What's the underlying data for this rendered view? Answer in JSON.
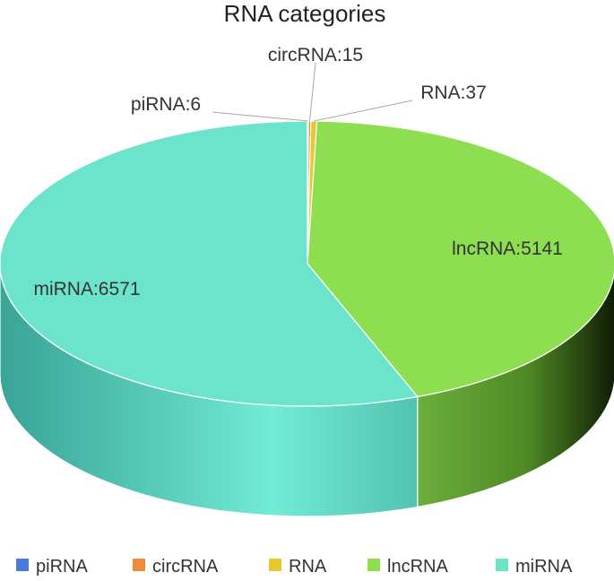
{
  "chart_data": {
    "type": "pie",
    "title": "RNA categories",
    "categories": [
      "piRNA",
      "circRNA",
      "RNA",
      "lncRNA",
      "miRNA"
    ],
    "values": [
      6,
      15,
      37,
      5141,
      6571
    ],
    "colors": [
      "#4a7bd8",
      "#ee8a3c",
      "#e8c830",
      "#8ede52",
      "#6ce4cc"
    ],
    "data_labels": [
      "piRNA:6",
      "circRNA:15",
      "RNA:37",
      "lncRNA:5141",
      "miRNA:6571"
    ],
    "legend_position": "bottom",
    "style": "3d"
  }
}
